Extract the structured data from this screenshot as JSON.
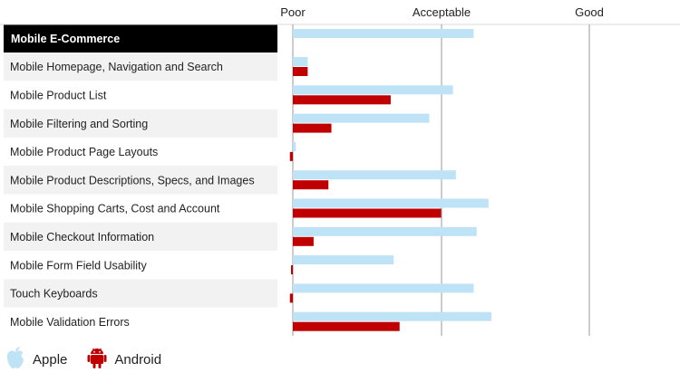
{
  "chart_data": {
    "type": "bar",
    "orientation": "horizontal",
    "header_row": "Mobile E-Commerce",
    "xaxis_labels": [
      "Poor",
      "Acceptable",
      "Good"
    ],
    "categories": [
      "Mobile Homepage, Navigation and Search",
      "Mobile Product List",
      "Mobile Filtering and Sorting",
      "Mobile Product Page Layouts",
      "Mobile Product Descriptions, Specs, and Images",
      "Mobile Shopping Carts, Cost and Account",
      "Mobile Checkout Information",
      "Mobile Form Field Usability",
      "Touch Keyboards",
      "Mobile Validation Errors"
    ],
    "header_value": {
      "Apple": 0.61
    },
    "series": [
      {
        "name": "Apple",
        "color": "#bfe3f6",
        "values": [
          0.05,
          0.54,
          0.46,
          0.01,
          0.55,
          0.66,
          0.62,
          0.34,
          0.61,
          0.67
        ]
      },
      {
        "name": "Android",
        "color": "#c00000",
        "values": [
          0.05,
          0.33,
          0.13,
          -0.01,
          0.12,
          0.5,
          0.07,
          -0.005,
          -0.01,
          0.36
        ]
      }
    ],
    "xlim": [
      0,
      1
    ],
    "grid": "vertical at Acceptable and Good",
    "legend": "bottom-left"
  },
  "legend": {
    "apple_label": "Apple",
    "android_label": "Android",
    "apple_icon": "apple-logo-icon",
    "android_icon": "android-logo-icon"
  }
}
